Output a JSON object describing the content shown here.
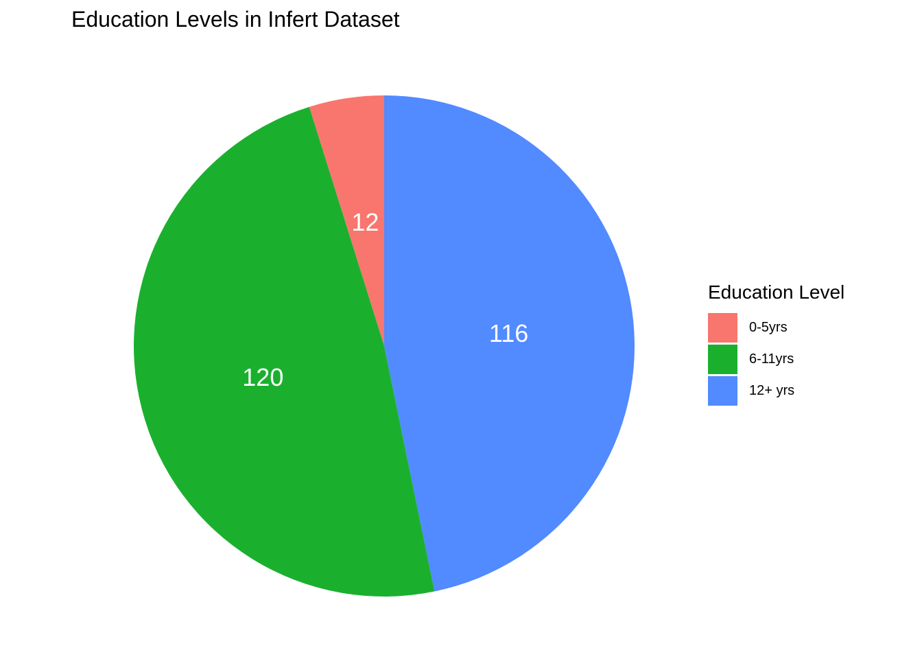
{
  "colors": {
    "0-5yrs": "#F8766D",
    "6-11yrs": "#1AB02E",
    "12+ yrs": "#528AFF"
  },
  "chart_data": {
    "type": "pie",
    "title": "Education Levels in Infert Dataset",
    "legend_title": "Education Level",
    "legend_position": "right",
    "categories": [
      "0-5yrs",
      "6-11yrs",
      "12+ yrs"
    ],
    "values": [
      12,
      120,
      116
    ],
    "data_labels": [
      "12",
      "120",
      "116"
    ],
    "start_angle": "12 o'clock",
    "direction": "counterclockwise"
  }
}
